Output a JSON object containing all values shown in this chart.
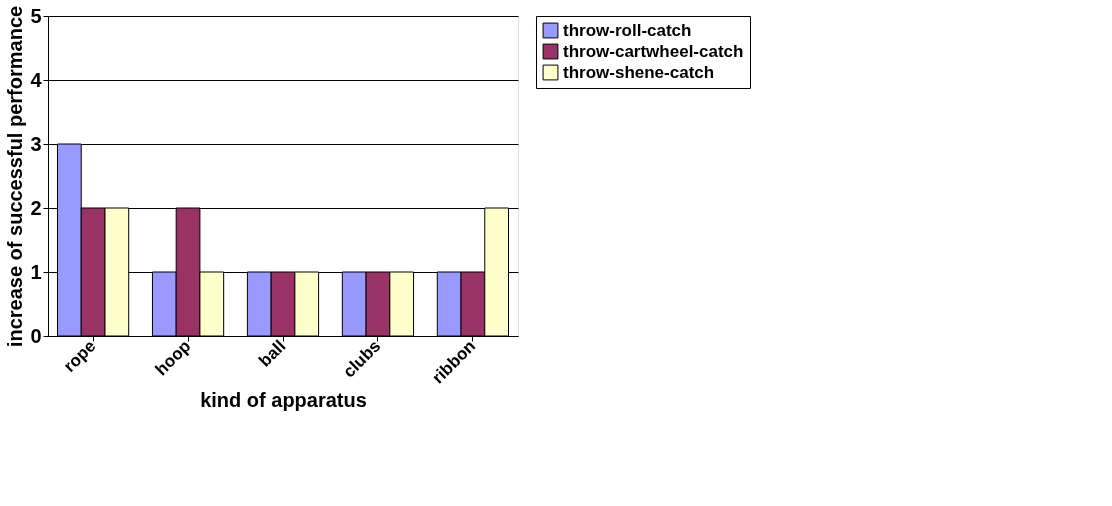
{
  "chart_data": {
    "type": "bar",
    "xlabel": "kind of apparatus",
    "ylabel": "increase of successful performance",
    "categories": [
      "rope",
      "hoop",
      "ball",
      "clubs",
      "ribbon"
    ],
    "series": [
      {
        "name": "throw-roll-catch",
        "color": "#9999ff",
        "values": [
          3,
          1,
          1,
          1,
          1
        ]
      },
      {
        "name": "throw-cartwheel-catch",
        "color": "#993366",
        "values": [
          2,
          2,
          1,
          1,
          1
        ]
      },
      {
        "name": "throw-shene-catch",
        "color": "#ffffcc",
        "values": [
          2,
          1,
          1,
          1,
          2
        ]
      }
    ],
    "ylim": [
      0,
      5
    ],
    "yticks": [
      0,
      1,
      2,
      3,
      4,
      5
    ],
    "grid": "y",
    "legend": "right"
  }
}
